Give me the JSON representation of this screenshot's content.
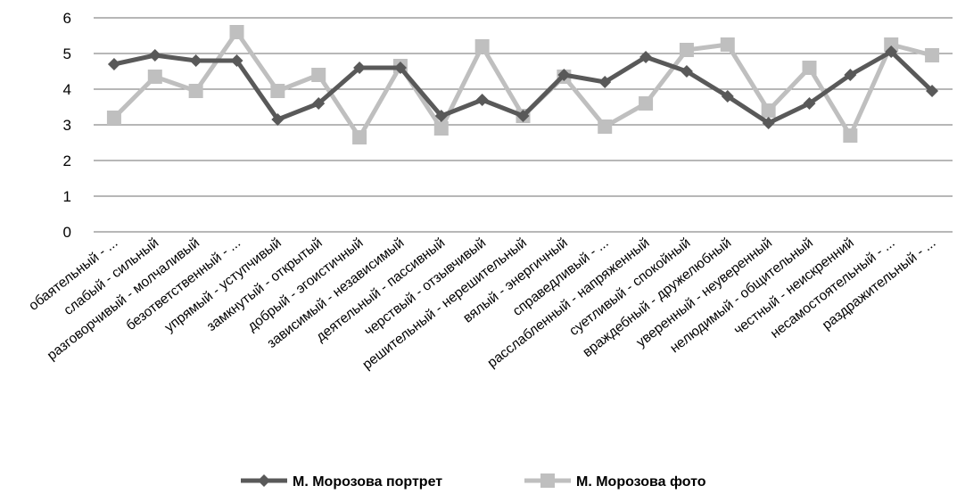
{
  "chart_data": {
    "type": "line",
    "title": "",
    "xlabel": "",
    "ylabel": "",
    "ylim": [
      0,
      6
    ],
    "yticks": [
      0,
      1,
      2,
      3,
      4,
      5,
      6
    ],
    "grid": "horizontal",
    "legend_position": "bottom",
    "categories": [
      "обаятельный - ...",
      "слабый - сильный",
      "разговорчивый - молчаливый",
      "безответственный - ...",
      "упрямый - уступчивый",
      "замкнутый - открытый",
      "добрый - эгоистичный",
      "зависимый - независимый",
      "деятельный - пассивный",
      "черствый - отзывчивый",
      "решительный - нерешительный",
      "вялый - энергичный",
      "справедливый - ...",
      "расслабленный - напряженный",
      "суетливый - спокойный",
      "враждебный - дружелюбный",
      "уверенный - неуверенный",
      "нелюдимый - общительный",
      "честный - неискренний",
      "несамостоятельный - ...",
      "раздражительный - ..."
    ],
    "series": [
      {
        "name": "М. Морозова портрет",
        "color": "#595959",
        "marker": "diamond",
        "values": [
          4.7,
          4.95,
          4.8,
          4.8,
          3.15,
          3.6,
          4.6,
          4.6,
          3.25,
          3.7,
          3.25,
          4.4,
          4.2,
          4.9,
          4.5,
          3.8,
          3.05,
          3.6,
          4.4,
          5.05,
          3.95
        ]
      },
      {
        "name": "М. Морозова фото",
        "color": "#bfbfbf",
        "marker": "square",
        "values": [
          3.2,
          4.35,
          3.95,
          5.6,
          3.95,
          4.4,
          2.65,
          4.65,
          2.9,
          5.2,
          3.25,
          4.35,
          2.95,
          3.6,
          5.1,
          5.25,
          3.4,
          4.6,
          2.7,
          5.25,
          4.95
        ]
      }
    ]
  }
}
